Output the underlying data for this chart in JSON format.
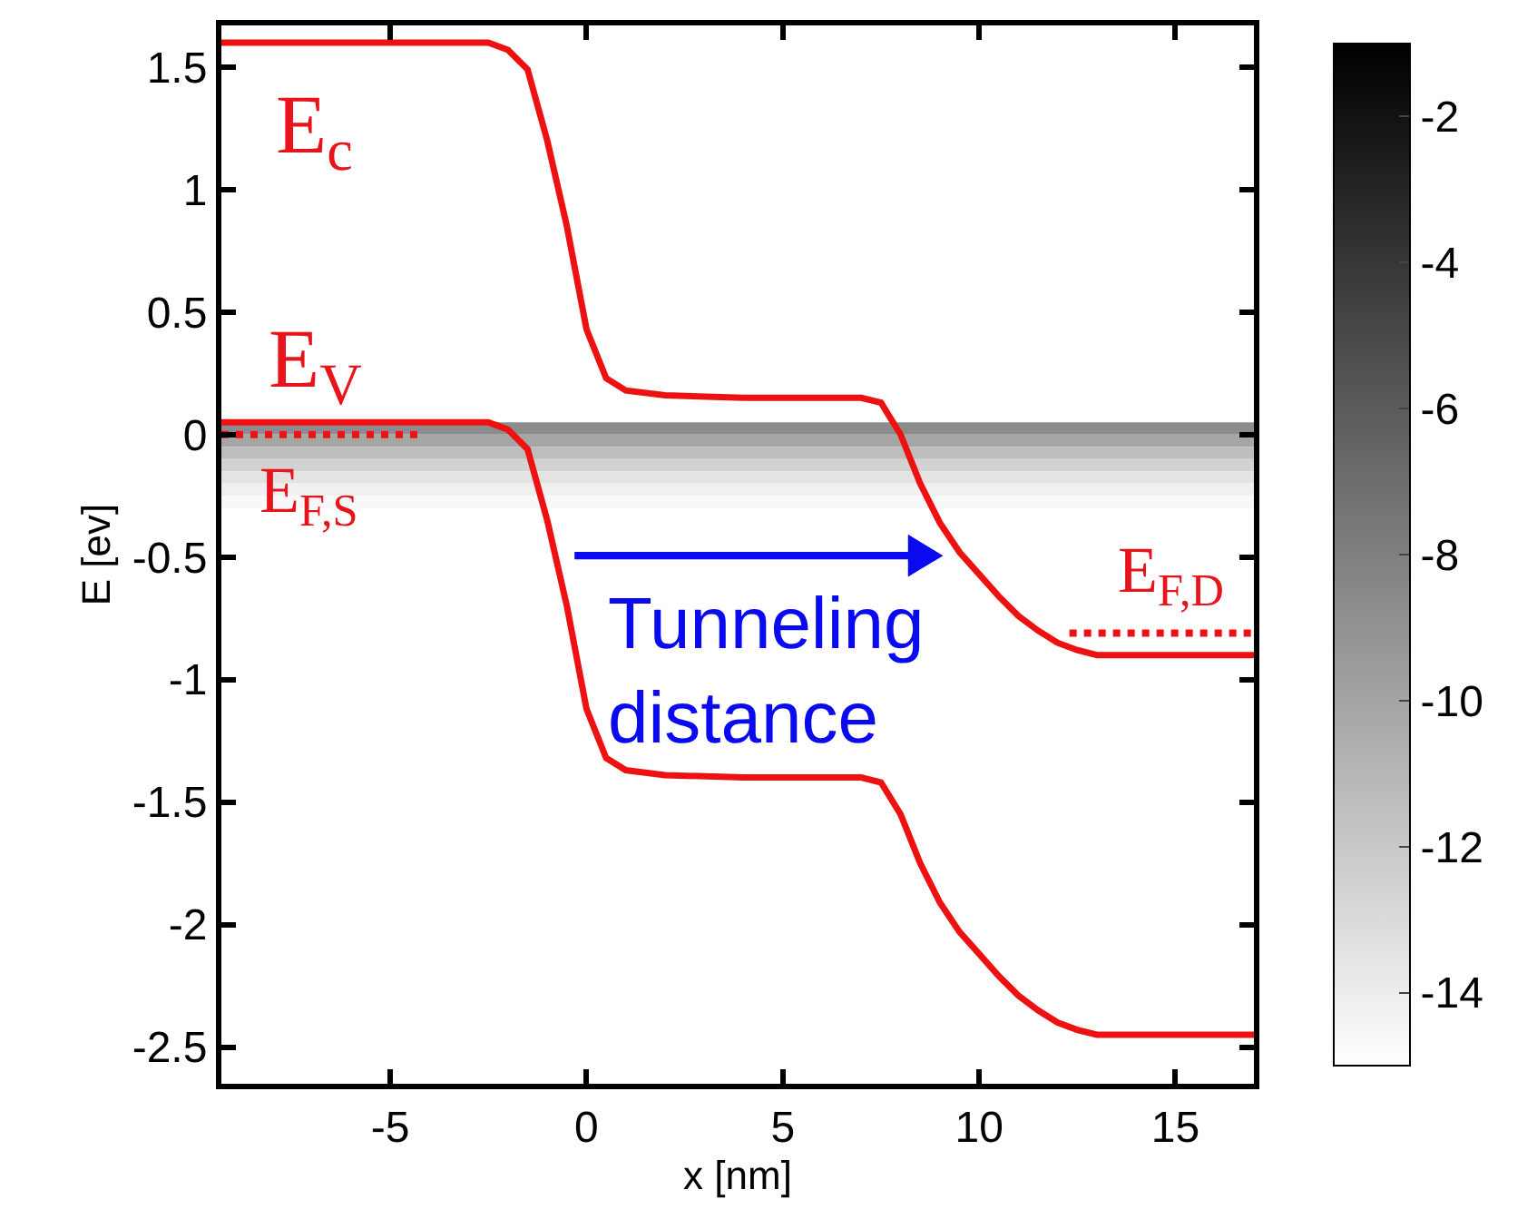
{
  "chart_data": {
    "type": "line",
    "xlabel": "x [nm]",
    "ylabel": "E [ev]",
    "xlim": [
      -9.3,
      17
    ],
    "xticks": [
      -5,
      0,
      5,
      10,
      15
    ],
    "ylim": [
      -2.65,
      1.67
    ],
    "yticks": [
      -2.5,
      -2,
      -1.5,
      -1,
      -0.5,
      0,
      0.5,
      1,
      1.5
    ],
    "grid": false,
    "marker": "none",
    "line_style": "solid",
    "clim": [
      -15,
      -1
    ],
    "cticks": [
      -14,
      -12,
      -10,
      -8,
      -6,
      -4,
      -2
    ],
    "series": [
      {
        "color": "#ee1111",
        "x": [
          -9.3,
          -2.5,
          -2,
          -1.5,
          -1,
          -0.5,
          0,
          0.5,
          1,
          2,
          4,
          7,
          7.5,
          8,
          8.5,
          9,
          9.5,
          10,
          10.5,
          11,
          11.5,
          12,
          12.5,
          13,
          17
        ],
        "values": [
          1.6,
          1.6,
          1.57,
          1.49,
          1.2,
          0.85,
          0.43,
          0.23,
          0.18,
          0.16,
          0.15,
          0.15,
          0.13,
          0.0,
          -0.2,
          -0.36,
          -0.48,
          -0.57,
          -0.66,
          -0.74,
          -0.8,
          -0.85,
          -0.88,
          -0.9,
          -0.9
        ]
      },
      {
        "color": "#ee1111",
        "x": [
          -9.3,
          -2.5,
          -2,
          -1.5,
          -1,
          -0.5,
          0,
          0.5,
          1,
          2,
          4,
          7,
          7.5,
          8,
          8.5,
          9,
          9.5,
          10,
          10.5,
          11,
          11.5,
          12,
          12.5,
          13,
          17
        ],
        "values": [
          0.05,
          0.05,
          0.02,
          -0.06,
          -0.35,
          -0.7,
          -1.12,
          -1.32,
          -1.37,
          -1.39,
          -1.4,
          -1.4,
          -1.42,
          -1.55,
          -1.75,
          -1.91,
          -2.03,
          -2.12,
          -2.21,
          -2.29,
          -2.35,
          -2.4,
          -2.43,
          -2.45,
          -2.45
        ]
      },
      {
        "color": "#ee1111",
        "line_style": "dotted",
        "x": [
          -9.3,
          -4.3
        ],
        "values": [
          0,
          0
        ]
      },
      {
        "color": "#ee1111",
        "line_style": "dotted",
        "x": [
          12.3,
          17
        ],
        "values": [
          -0.81,
          -0.81
        ]
      }
    ],
    "bands": [
      {
        "axis": "y",
        "from": 0,
        "to": 0.05,
        "color": "#8c8c8c"
      },
      {
        "axis": "y",
        "from": -0.05,
        "to": 0,
        "color": "#a6a6a6"
      },
      {
        "axis": "y",
        "from": -0.1,
        "to": -0.05,
        "color": "#bdbdbd"
      },
      {
        "axis": "y",
        "from": -0.15,
        "to": -0.1,
        "color": "#d2d2d2"
      },
      {
        "axis": "y",
        "from": -0.2,
        "to": -0.15,
        "color": "#e3e3e3"
      },
      {
        "axis": "y",
        "from": -0.25,
        "to": -0.2,
        "color": "#f0f0f0"
      },
      {
        "axis": "y",
        "from": -0.3,
        "to": -0.25,
        "color": "#f8f8f8"
      }
    ],
    "annotations": [
      "E$_{c}$",
      "E$_{V}$",
      "E$_{F,S}$",
      "E$_{F,D}$",
      "Tunneling\ndistance"
    ]
  }
}
